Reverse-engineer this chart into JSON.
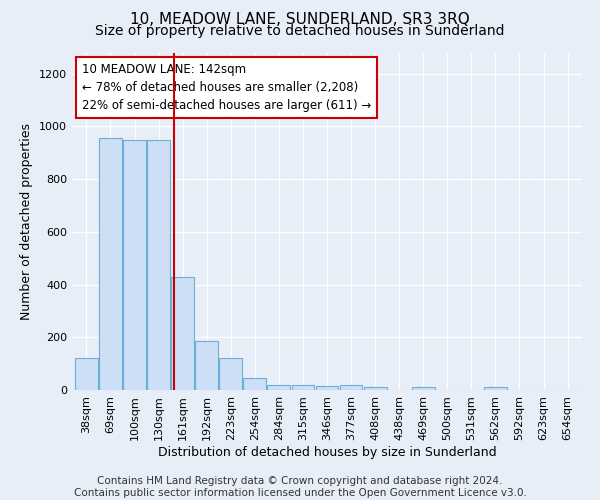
{
  "title": "10, MEADOW LANE, SUNDERLAND, SR3 3RQ",
  "subtitle": "Size of property relative to detached houses in Sunderland",
  "xlabel": "Distribution of detached houses by size in Sunderland",
  "ylabel": "Number of detached properties",
  "categories": [
    "38sqm",
    "69sqm",
    "100sqm",
    "130sqm",
    "161sqm",
    "192sqm",
    "223sqm",
    "254sqm",
    "284sqm",
    "315sqm",
    "346sqm",
    "377sqm",
    "408sqm",
    "438sqm",
    "469sqm",
    "500sqm",
    "531sqm",
    "562sqm",
    "592sqm",
    "623sqm",
    "654sqm"
  ],
  "values": [
    120,
    955,
    950,
    950,
    430,
    185,
    120,
    45,
    20,
    20,
    15,
    20,
    10,
    0,
    10,
    0,
    0,
    10,
    0,
    0,
    0
  ],
  "bar_color": "#ccdff5",
  "bar_edge_color": "#6aaed6",
  "red_line_x": 3.62,
  "annotation_text": "10 MEADOW LANE: 142sqm\n← 78% of detached houses are smaller (2,208)\n22% of semi-detached houses are larger (611) →",
  "annotation_box_color": "white",
  "annotation_box_edge_color": "#cc0000",
  "red_line_color": "#cc0000",
  "ylim": [
    0,
    1280
  ],
  "yticks": [
    0,
    200,
    400,
    600,
    800,
    1000,
    1200
  ],
  "footer_line1": "Contains HM Land Registry data © Crown copyright and database right 2024.",
  "footer_line2": "Contains public sector information licensed under the Open Government Licence v3.0.",
  "background_color": "#e8eef8",
  "grid_color": "#ffffff",
  "title_fontsize": 11,
  "subtitle_fontsize": 10,
  "axis_label_fontsize": 9,
  "tick_fontsize": 8,
  "footer_fontsize": 7.5,
  "annotation_fontsize": 8.5
}
